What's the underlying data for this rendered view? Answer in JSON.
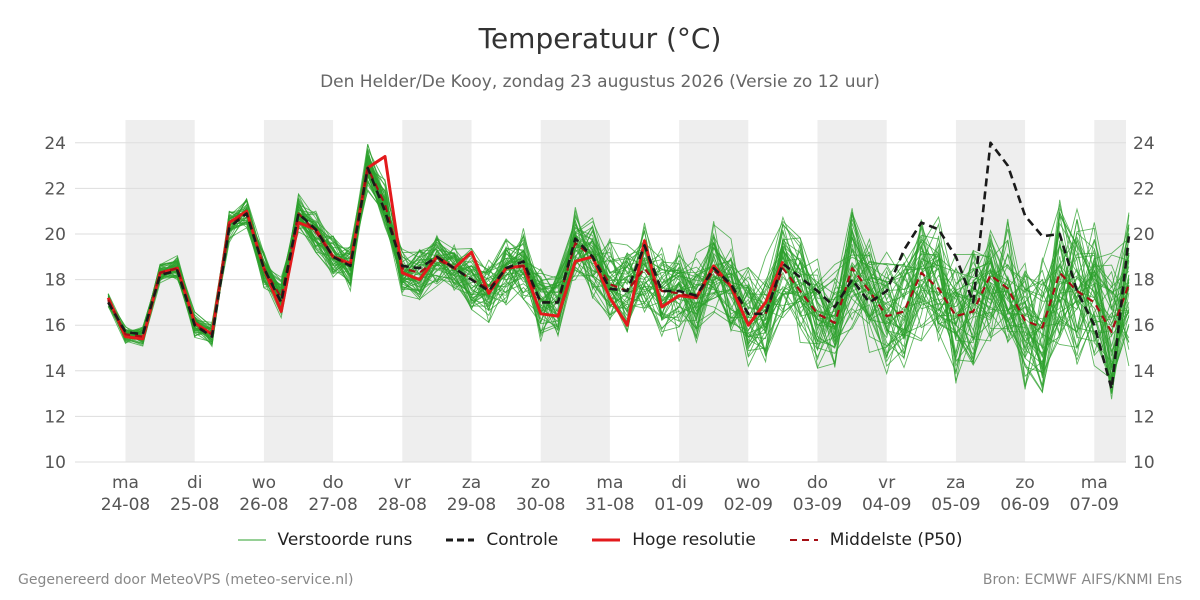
{
  "title": "Temperatuur (°C)",
  "subtitle": "Den Helder/De Kooy, zondag 23 augustus 2026 (Versie zo 12 uur)",
  "footer_left": "Gegenereerd door MeteoVPS (meteo-service.nl)",
  "footer_right": "Bron: ECMWF AIFS/KNMI Ens",
  "legend": [
    {
      "label": "Verstoorde runs",
      "color": "#2ca02c",
      "style": "thin"
    },
    {
      "label": "Controle",
      "color": "#1a1a1a",
      "style": "dashed"
    },
    {
      "label": "Hoge resolutie",
      "color": "#e31a1c",
      "style": "solid"
    },
    {
      "label": "Middelste (P50)",
      "color": "#a50f15",
      "style": "dashed"
    }
  ],
  "chart_data": {
    "type": "line",
    "ylabel": "",
    "ylim": [
      10,
      25
    ],
    "yticks": [
      10,
      12,
      14,
      16,
      18,
      20,
      22,
      24
    ],
    "xlim": [
      -1.6,
      14.5
    ],
    "day_ticks": [
      {
        "day": "ma",
        "date": "24-08"
      },
      {
        "day": "di",
        "date": "25-08"
      },
      {
        "day": "wo",
        "date": "26-08"
      },
      {
        "day": "do",
        "date": "27-08"
      },
      {
        "day": "vr",
        "date": "28-08"
      },
      {
        "day": "za",
        "date": "29-08"
      },
      {
        "day": "zo",
        "date": "30-08"
      },
      {
        "day": "ma",
        "date": "31-08"
      },
      {
        "day": "di",
        "date": "01-09"
      },
      {
        "day": "wo",
        "date": "02-09"
      },
      {
        "day": "do",
        "date": "03-09"
      },
      {
        "day": "vr",
        "date": "04-09"
      },
      {
        "day": "za",
        "date": "05-09"
      },
      {
        "day": "zo",
        "date": "06-09"
      },
      {
        "day": "ma",
        "date": "07-09"
      }
    ],
    "shaded_day_bands": [
      [
        0,
        1
      ],
      [
        2,
        3
      ],
      [
        4,
        5
      ],
      [
        6,
        7
      ],
      [
        8,
        9
      ],
      [
        10,
        11
      ],
      [
        12,
        13
      ],
      [
        14,
        14.5
      ]
    ],
    "grid": true,
    "colors": {
      "ensemble": "#2ca02c",
      "control": "#1a1a1a",
      "hires": "#e31a1c",
      "median": "#a50f15",
      "band": "#eeeeee",
      "grid": "#dddddd"
    },
    "series": [
      {
        "name": "Hoge resolutie",
        "x": [
          -0.25,
          0,
          0.25,
          0.5,
          0.75,
          1,
          1.25,
          1.5,
          1.75,
          2,
          2.25,
          2.5,
          2.75,
          3,
          3.25,
          3.5,
          3.75,
          4,
          4.25,
          4.5,
          4.75,
          5,
          5.25,
          5.5,
          5.75,
          6,
          6.25,
          6.5,
          6.75,
          7,
          7.25,
          7.5,
          7.75,
          8,
          8.25,
          8.5,
          8.75,
          9,
          9.25,
          9.5
        ],
        "y": [
          17.2,
          15.5,
          15.4,
          18.3,
          18.5,
          16.1,
          15.6,
          20.5,
          21.0,
          18.5,
          16.6,
          20.5,
          20.2,
          19.0,
          18.7,
          22.9,
          23.4,
          18.3,
          18.0,
          19.0,
          18.5,
          19.2,
          17.4,
          18.5,
          18.6,
          16.5,
          16.4,
          18.8,
          19.0,
          17.2,
          16.0,
          19.7,
          16.8,
          17.3,
          17.2,
          18.6,
          17.7,
          16.0,
          17.0,
          18.8
        ]
      },
      {
        "name": "Controle",
        "x": [
          -0.25,
          0,
          0.25,
          0.5,
          0.75,
          1,
          1.25,
          1.5,
          1.75,
          2,
          2.25,
          2.5,
          2.75,
          3,
          3.25,
          3.5,
          3.75,
          4,
          4.25,
          4.5,
          4.75,
          5,
          5.25,
          5.5,
          5.75,
          6,
          6.25,
          6.5,
          6.75,
          7,
          7.25,
          7.5,
          7.75,
          8,
          8.25,
          8.5,
          8.75,
          9,
          9.25,
          9.5,
          9.75,
          10,
          10.25,
          10.5,
          10.75,
          11,
          11.25,
          11.5,
          11.75,
          12,
          12.25,
          12.5,
          12.75,
          13,
          13.25,
          13.5,
          13.75,
          14,
          14.25,
          14.5
        ],
        "y": [
          17.0,
          15.7,
          15.6,
          18.2,
          18.4,
          16.0,
          15.5,
          20.3,
          20.9,
          18.5,
          17.0,
          20.9,
          20.2,
          19.0,
          18.6,
          22.9,
          21.0,
          18.6,
          18.5,
          19.0,
          18.5,
          18.0,
          17.5,
          18.5,
          18.8,
          17.0,
          17.0,
          19.8,
          19.0,
          17.6,
          17.5,
          19.5,
          17.5,
          17.5,
          17.3,
          18.5,
          17.8,
          16.5,
          16.5,
          18.7,
          18.1,
          17.5,
          16.8,
          18.0,
          17.0,
          17.5,
          19.3,
          20.5,
          20.2,
          19.0,
          17.0,
          24.0,
          23.0,
          20.8,
          19.9,
          20.0,
          17.5,
          16.0,
          13.2,
          19.9
        ]
      },
      {
        "name": "Middelste (P50)",
        "x": [
          -0.25,
          0,
          0.25,
          0.5,
          0.75,
          1,
          1.25,
          1.5,
          1.75,
          2,
          2.25,
          2.5,
          2.75,
          3,
          3.25,
          3.5,
          3.75,
          4,
          4.25,
          4.5,
          4.75,
          5,
          5.25,
          5.5,
          5.75,
          6,
          6.25,
          6.5,
          6.75,
          7,
          7.25,
          7.5,
          7.75,
          8,
          8.25,
          8.5,
          8.75,
          9,
          9.25,
          9.5,
          9.75,
          10,
          10.25,
          10.5,
          10.75,
          11,
          11.25,
          11.5,
          11.75,
          12,
          12.25,
          12.5,
          12.75,
          13,
          13.25,
          13.5,
          13.75,
          14,
          14.25,
          14.5
        ],
        "y": [
          17.1,
          15.6,
          15.5,
          18.3,
          18.5,
          16.0,
          15.6,
          20.4,
          20.9,
          18.5,
          17.2,
          20.9,
          20.1,
          19.0,
          18.6,
          22.9,
          21.3,
          18.5,
          18.3,
          18.9,
          18.5,
          18.0,
          17.6,
          18.5,
          18.6,
          17.0,
          17.0,
          19.6,
          19.0,
          17.8,
          17.5,
          18.5,
          17.5,
          17.4,
          17.2,
          18.4,
          17.7,
          16.5,
          16.5,
          18.5,
          17.5,
          16.5,
          16.1,
          18.5,
          17.5,
          16.4,
          16.6,
          18.3,
          17.6,
          16.4,
          16.6,
          18.2,
          17.6,
          16.2,
          15.9,
          18.3,
          17.5,
          17.0,
          15.7,
          17.8
        ]
      }
    ]
  }
}
